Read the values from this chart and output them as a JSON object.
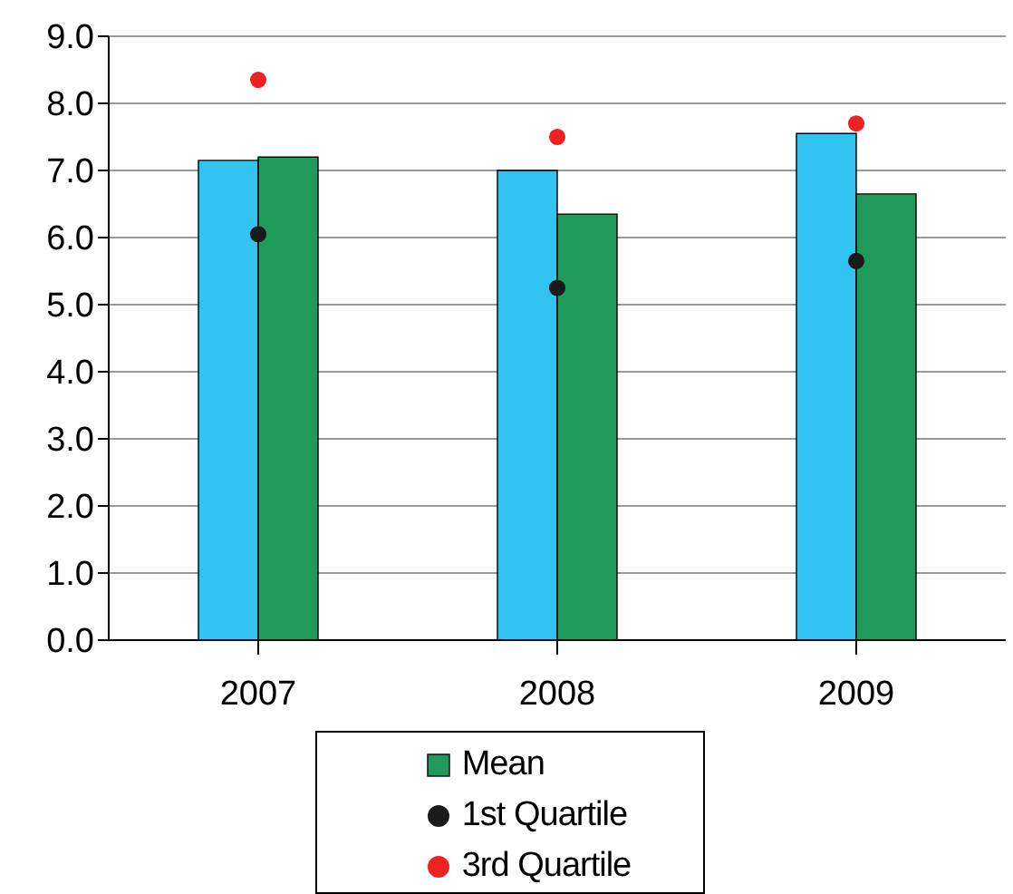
{
  "chart_data": {
    "type": "bar",
    "categories": [
      "2007",
      "2008",
      "2009"
    ],
    "series": [
      {
        "color": "#33c3f0",
        "values": [
          7.15,
          7.0,
          7.55
        ]
      },
      {
        "name": "Mean",
        "color": "#1f9a5a",
        "values": [
          7.2,
          6.35,
          6.65
        ]
      },
      {
        "type": "scatter",
        "name": "1st Quartile",
        "color": "#1a1a1a",
        "marker": "circle",
        "values": [
          6.05,
          5.25,
          5.65
        ]
      },
      {
        "type": "scatter",
        "name": "3rd Quartile",
        "color": "#ee2222",
        "marker": "circle",
        "values": [
          8.35,
          7.5,
          7.7
        ]
      }
    ],
    "ylim": [
      0,
      9
    ],
    "yticks": [
      {
        "value": 0,
        "label": "0.0"
      },
      {
        "value": 1,
        "label": "1.0"
      },
      {
        "value": 2,
        "label": "2.0"
      },
      {
        "value": 3,
        "label": "3.0"
      },
      {
        "value": 4,
        "label": "4.0"
      },
      {
        "value": 5,
        "label": "5.0"
      },
      {
        "value": 6,
        "label": "6.0"
      },
      {
        "value": 7,
        "label": "7.0"
      },
      {
        "value": 8,
        "label": "8.0"
      },
      {
        "value": 9,
        "label": "9.0"
      }
    ],
    "grid": "y",
    "legend": "bottom"
  }
}
